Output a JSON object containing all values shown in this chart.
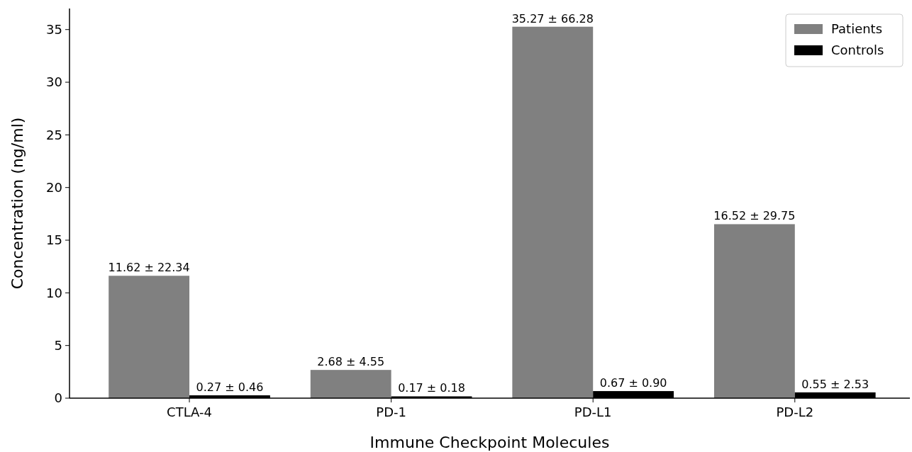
{
  "chart_data": {
    "type": "bar",
    "xlabel": "Immune Checkpoint Molecules",
    "ylabel": "Concentration (ng/ml)",
    "categories": [
      "CTLA-4",
      "PD-1",
      "PD-L1",
      "PD-L2"
    ],
    "series": [
      {
        "name": "Patients",
        "color": "#808080",
        "values": [
          11.62,
          2.68,
          35.27,
          16.52
        ],
        "value_labels": [
          "11.62 ± 22.34",
          "2.68 ± 4.55",
          "35.27 ± 66.28",
          "16.52 ± 29.75"
        ]
      },
      {
        "name": "Controls",
        "color": "#000000",
        "values": [
          0.27,
          0.17,
          0.67,
          0.55
        ],
        "value_labels": [
          "0.27 ± 0.46",
          "0.17 ± 0.18",
          "0.67 ± 0.90",
          "0.55 ± 2.53"
        ]
      }
    ],
    "ylim": [
      0,
      37
    ],
    "yticks": [
      0,
      5,
      10,
      15,
      20,
      25,
      30,
      35
    ],
    "legend": "top right",
    "grid": false
  }
}
